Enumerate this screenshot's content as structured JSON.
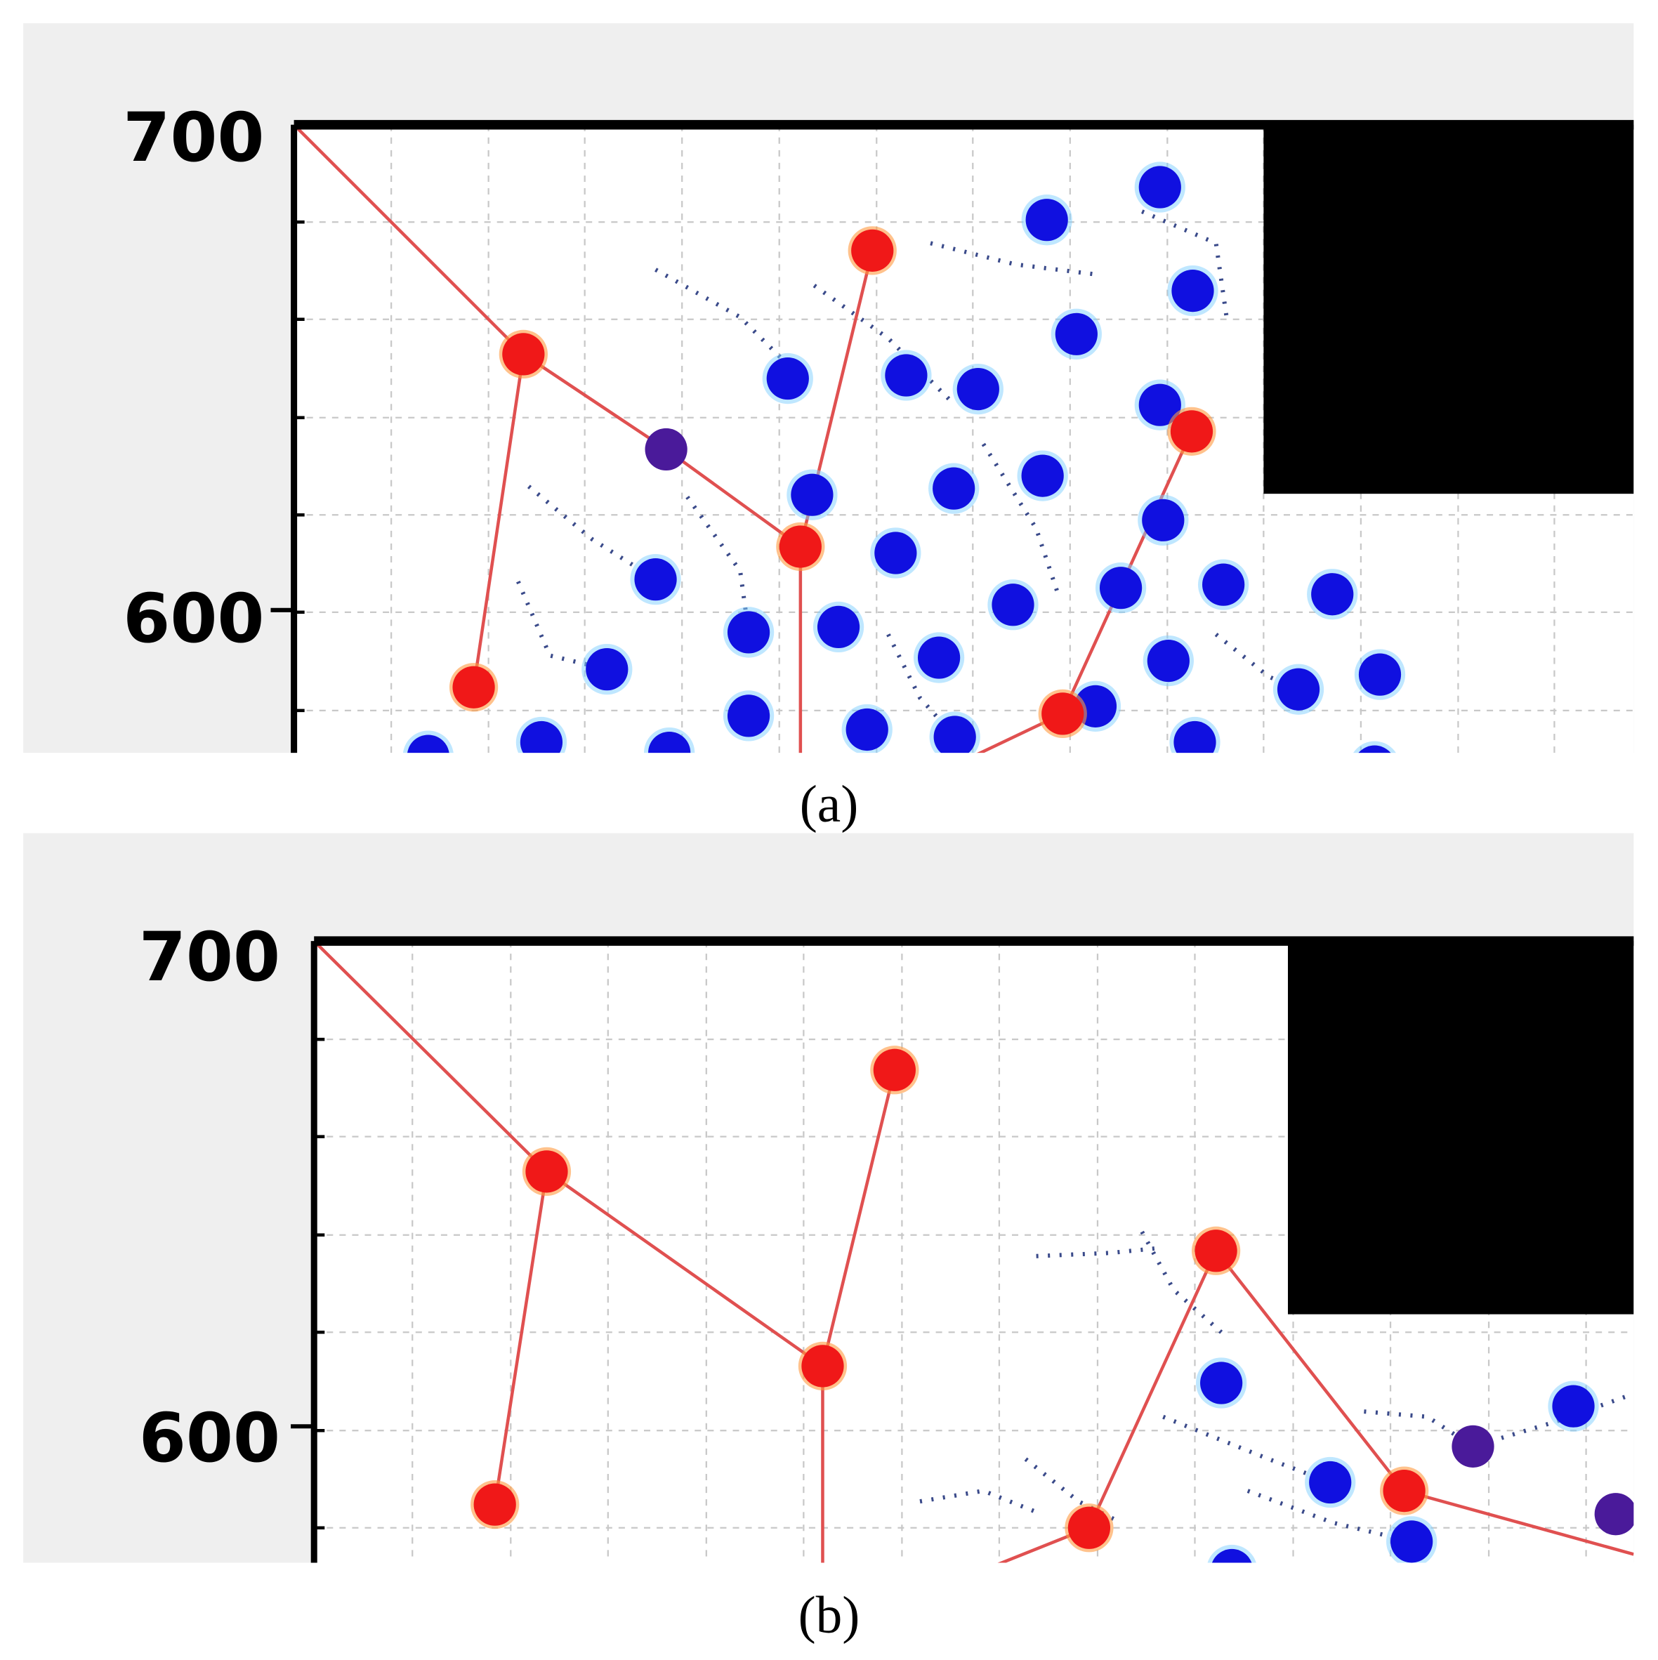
{
  "panels": [
    {
      "y_tick_labels": [
        "700",
        "600"
      ],
      "caption": "(a)"
    },
    {
      "y_tick_labels": [
        "700",
        "600"
      ],
      "caption": "(b)"
    }
  ]
}
